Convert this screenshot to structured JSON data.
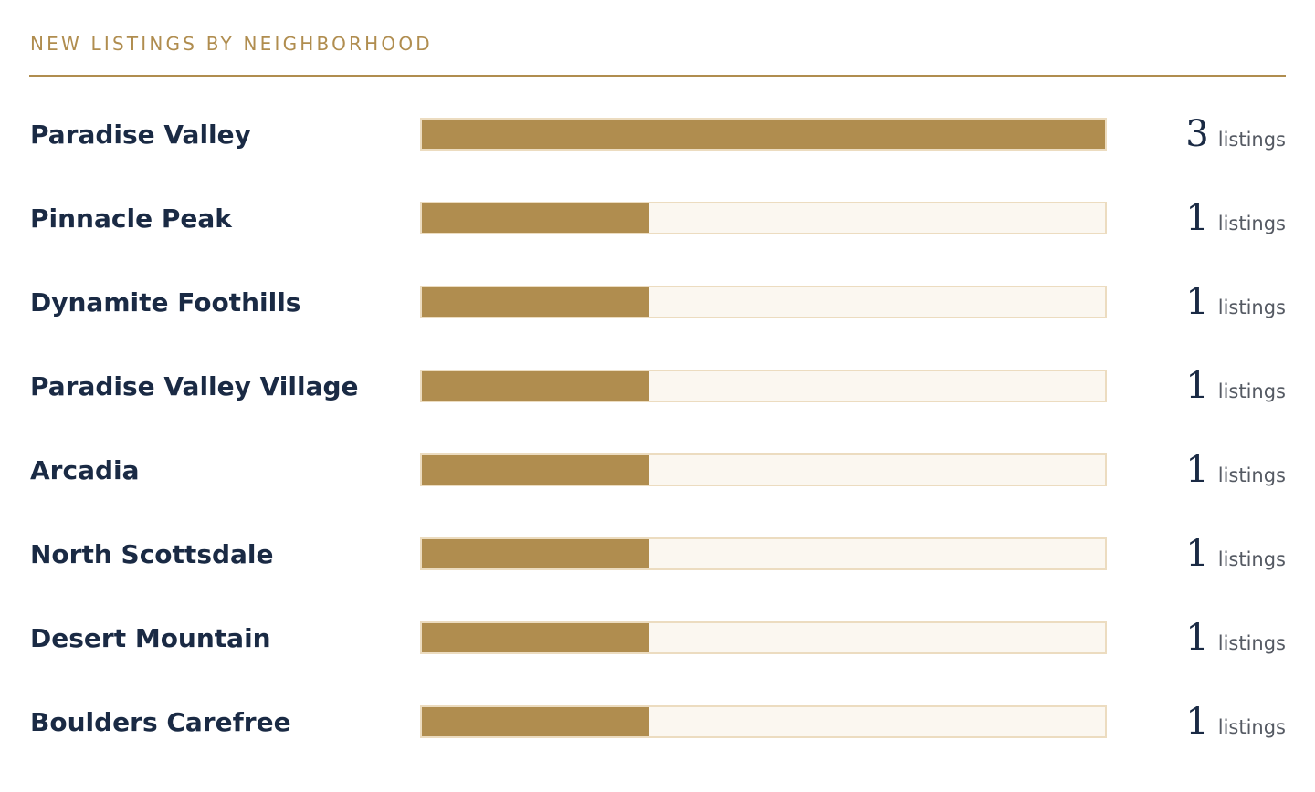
{
  "header": {
    "title": "NEW LISTINGS BY NEIGHBORHOOD"
  },
  "colors": {
    "accent": "#b08d4f",
    "track_bg": "#fbf7f0",
    "track_border": "#ecdcc0",
    "text_primary": "#1a2a44",
    "text_secondary": "#555a63"
  },
  "chart_data": {
    "type": "bar",
    "orientation": "horizontal",
    "title": "NEW LISTINGS BY NEIGHBORHOOD",
    "categories": [
      "Paradise Valley",
      "Pinnacle Peak",
      "Dynamite Foothills",
      "Paradise Valley Village",
      "Arcadia",
      "North Scottsdale",
      "Desert Mountain",
      "Boulders Carefree"
    ],
    "values": [
      3,
      1,
      1,
      1,
      1,
      1,
      1,
      1
    ],
    "unit_label": "listings",
    "xlim": [
      0,
      3
    ],
    "grid": false,
    "legend": "none"
  }
}
